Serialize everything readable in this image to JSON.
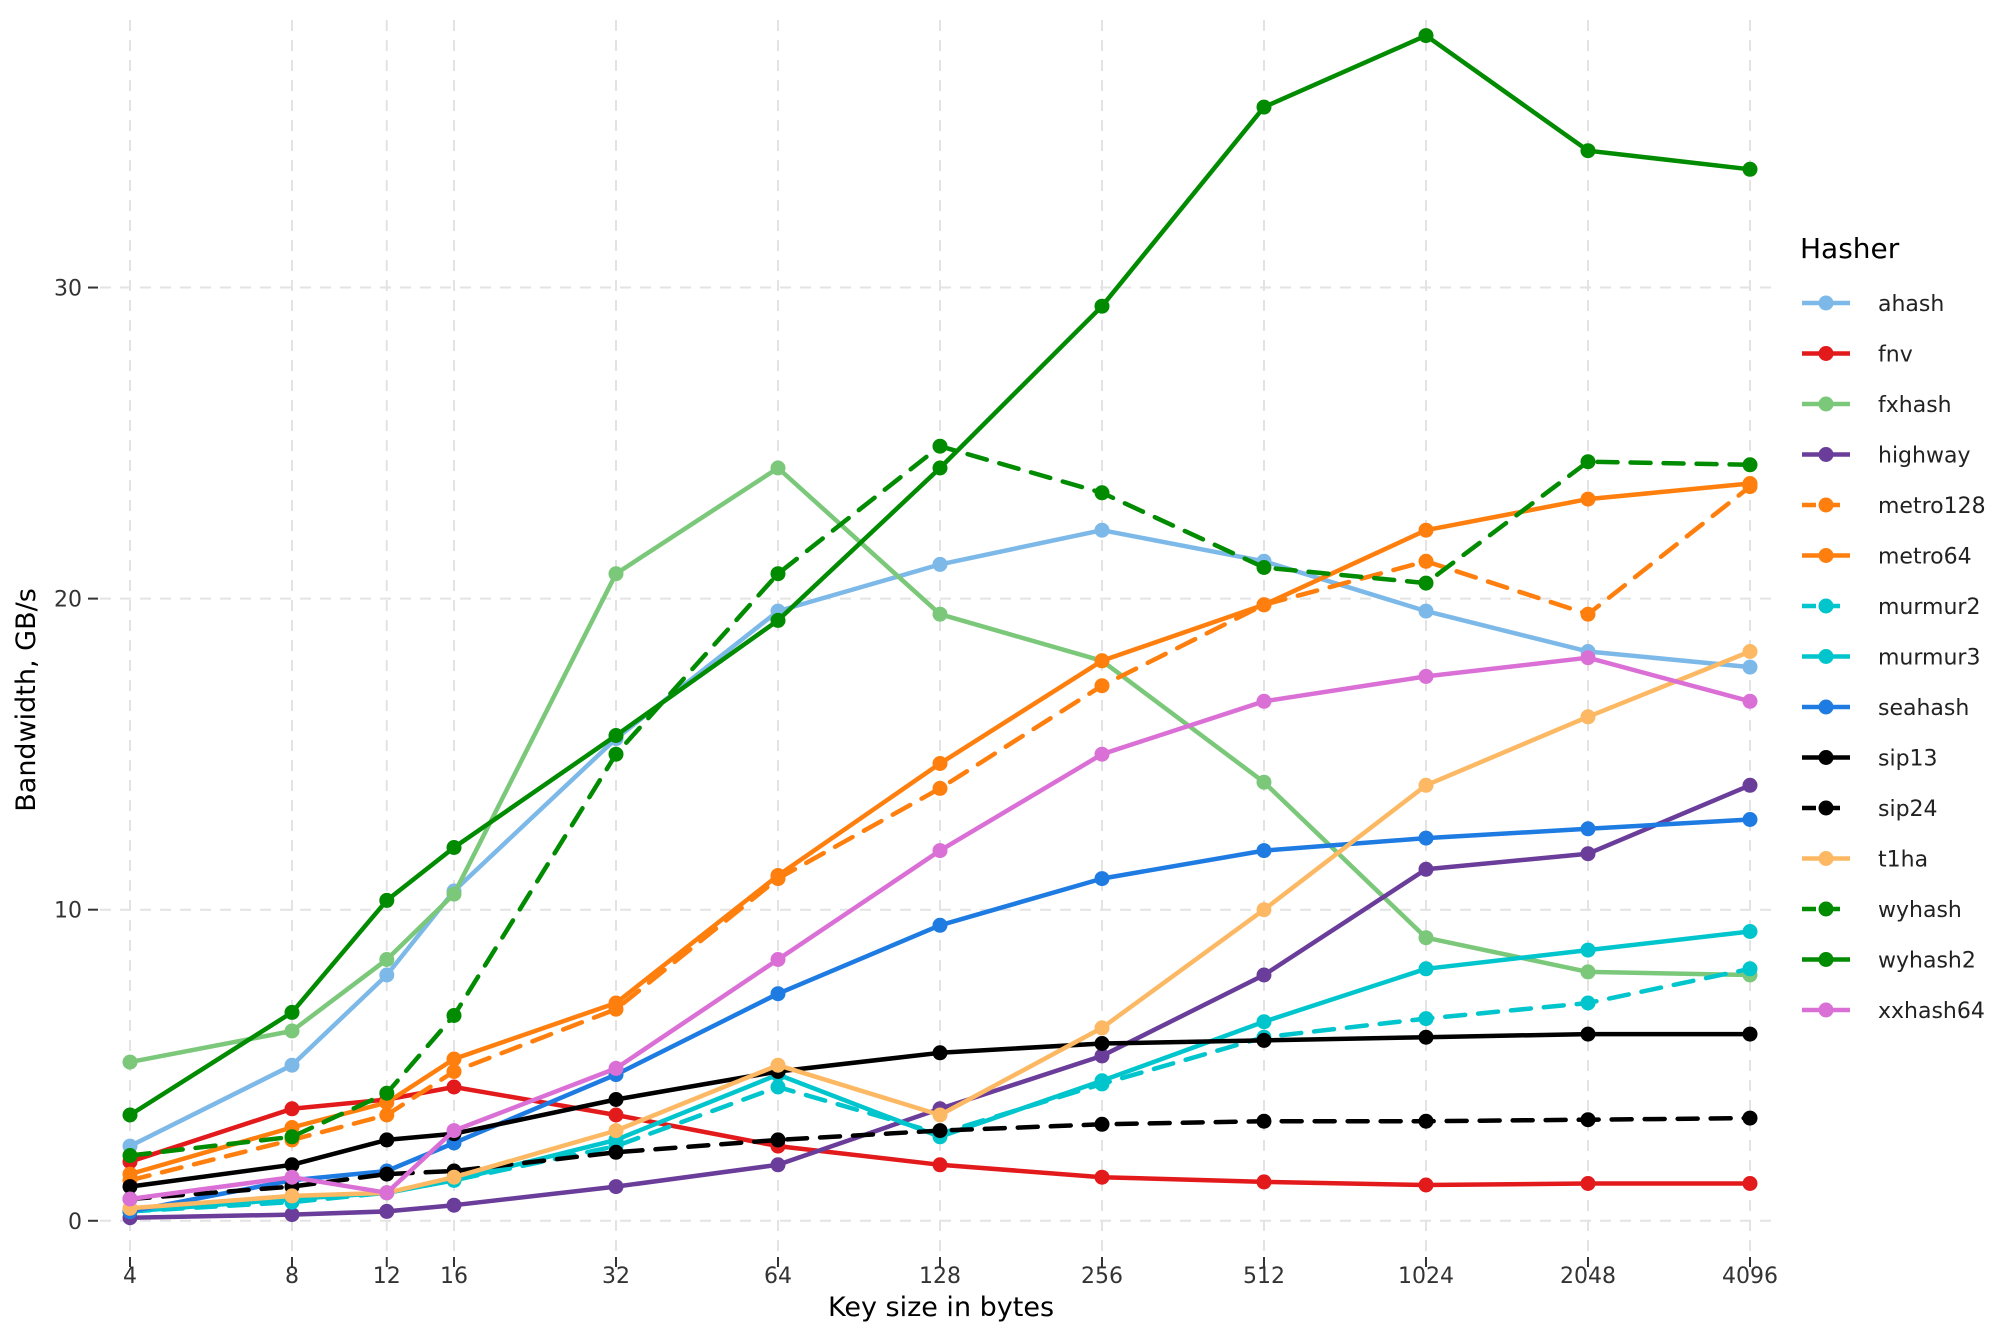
{
  "chart_data": {
    "type": "line",
    "title": "",
    "xlabel": "Key size in bytes",
    "ylabel": "Bandwidth, GB/s",
    "x_scale": "log2",
    "x": [
      4,
      8,
      12,
      16,
      32,
      64,
      128,
      256,
      512,
      1024,
      2048,
      4096
    ],
    "x_tick_labels": [
      "4",
      "8",
      "12",
      "16",
      "32",
      "64",
      "128",
      "256",
      "512",
      "1024",
      "2048",
      "4096"
    ],
    "y_ticks": [
      0,
      10,
      20,
      30
    ],
    "y_tick_labels": [
      "0",
      "10",
      "20",
      "30"
    ],
    "ylim": [
      -1.1,
      38.6
    ],
    "grid": true,
    "legend": {
      "title": "Hasher",
      "position": "right"
    },
    "series": [
      {
        "name": "ahash",
        "color": "#7db9e8",
        "dashed": false,
        "values": [
          2.4,
          5.0,
          7.9,
          10.6,
          15.5,
          19.6,
          21.1,
          22.2,
          21.2,
          19.6,
          18.3,
          17.8
        ]
      },
      {
        "name": "fnv",
        "color": "#e31a1c",
        "dashed": false,
        "values": [
          1.9,
          3.6,
          3.9,
          4.3,
          3.4,
          2.4,
          1.8,
          1.4,
          1.25,
          1.15,
          1.2,
          1.2
        ]
      },
      {
        "name": "fxhash",
        "color": "#7bc87a",
        "dashed": false,
        "values": [
          5.1,
          6.1,
          8.4,
          10.5,
          20.8,
          24.2,
          19.5,
          18.0,
          14.1,
          9.1,
          8.0,
          7.9
        ]
      },
      {
        "name": "highway",
        "color": "#6a3d9a",
        "dashed": false,
        "values": [
          0.1,
          0.2,
          0.3,
          0.5,
          1.1,
          1.8,
          3.6,
          5.3,
          7.9,
          11.3,
          11.8,
          14.0
        ]
      },
      {
        "name": "metro128",
        "color": "#ff7f0e",
        "dashed": true,
        "values": [
          1.3,
          2.6,
          3.4,
          4.8,
          6.8,
          11.0,
          13.9,
          17.2,
          19.8,
          21.2,
          19.5,
          23.6
        ]
      },
      {
        "name": "metro64",
        "color": "#ff7f0e",
        "dashed": false,
        "values": [
          1.5,
          3.0,
          3.8,
          5.2,
          7.0,
          11.1,
          14.7,
          18.0,
          19.8,
          22.2,
          23.2,
          23.7
        ]
      },
      {
        "name": "murmur2",
        "color": "#00c5cd",
        "dashed": true,
        "values": [
          0.3,
          0.6,
          0.9,
          1.3,
          2.4,
          4.3,
          2.8,
          4.4,
          5.9,
          6.5,
          7.0,
          8.1
        ]
      },
      {
        "name": "murmur3",
        "color": "#00c5cd",
        "dashed": false,
        "values": [
          0.3,
          0.7,
          0.9,
          1.3,
          2.6,
          4.7,
          2.7,
          4.5,
          6.4,
          8.1,
          8.7,
          9.3
        ]
      },
      {
        "name": "seahash",
        "color": "#1e7be2",
        "dashed": false,
        "values": [
          0.3,
          1.3,
          1.6,
          2.5,
          4.7,
          7.3,
          9.5,
          11.0,
          11.9,
          12.3,
          12.6,
          12.9
        ]
      },
      {
        "name": "sip13",
        "color": "#000000",
        "dashed": false,
        "values": [
          1.1,
          1.8,
          2.6,
          2.8,
          3.9,
          4.8,
          5.4,
          5.7,
          5.8,
          5.9,
          6.0,
          6.0
        ]
      },
      {
        "name": "sip24",
        "color": "#000000",
        "dashed": true,
        "values": [
          0.7,
          1.1,
          1.5,
          1.6,
          2.2,
          2.6,
          2.9,
          3.1,
          3.2,
          3.2,
          3.25,
          3.3
        ]
      },
      {
        "name": "t1ha",
        "color": "#fdb863",
        "dashed": false,
        "values": [
          0.4,
          0.8,
          0.9,
          1.4,
          2.9,
          5.0,
          3.4,
          6.2,
          10.0,
          14.0,
          16.2,
          18.3
        ]
      },
      {
        "name": "wyhash",
        "color": "#008b00",
        "dashed": true,
        "values": [
          2.1,
          2.7,
          4.1,
          6.6,
          15.0,
          20.8,
          24.9,
          23.4,
          21.0,
          20.5,
          24.4,
          24.3
        ]
      },
      {
        "name": "wyhash2",
        "color": "#008b00",
        "dashed": false,
        "values": [
          3.4,
          6.7,
          10.3,
          12.0,
          15.6,
          19.3,
          24.2,
          29.4,
          35.8,
          38.1,
          34.4,
          33.8
        ]
      },
      {
        "name": "xxhash64",
        "color": "#da70d6",
        "dashed": false,
        "values": [
          0.7,
          1.4,
          0.9,
          2.9,
          4.9,
          8.4,
          11.9,
          15.0,
          16.7,
          17.5,
          18.1,
          16.7
        ]
      }
    ]
  }
}
